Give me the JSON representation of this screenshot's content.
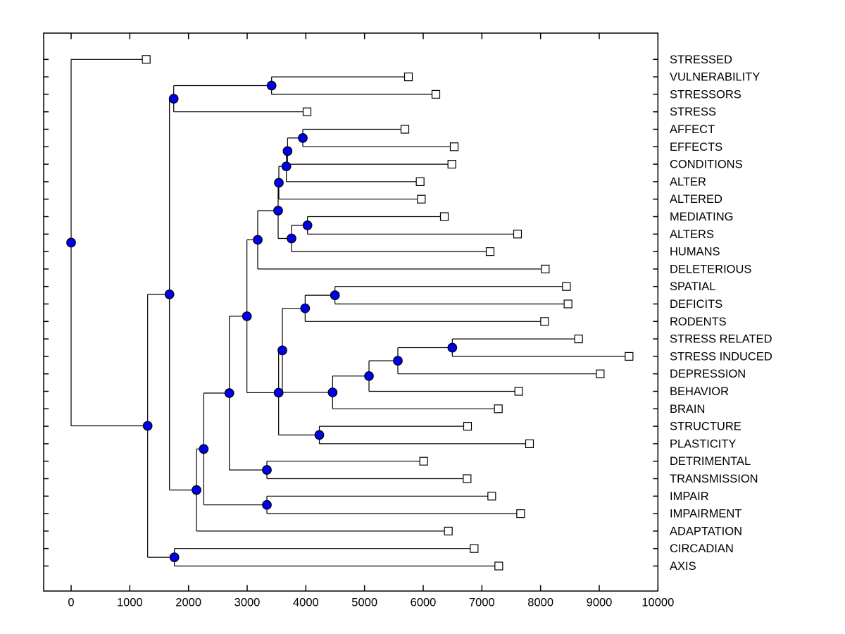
{
  "chart_data": {
    "type": "dendrogram",
    "subtype": "phylogenetic-tree-left-to-right",
    "title": "",
    "xlabel": "",
    "ylabel": "",
    "grid": false,
    "legend": null,
    "xlim": [
      -470,
      10000
    ],
    "x_ticks": [
      0,
      1000,
      2000,
      3000,
      4000,
      5000,
      6000,
      7000,
      8000,
      9000,
      10000
    ],
    "x_tick_labels": [
      "0",
      "1000",
      "2000",
      "3000",
      "4000",
      "5000",
      "6000",
      "7000",
      "8000",
      "9000",
      "10000"
    ],
    "leaf_label_side": "right",
    "markers": {
      "internal_node": "filled-circle",
      "leaf": "open-square"
    },
    "colors": {
      "background": "#ffffff",
      "branch": "#000000",
      "frame": "#000000",
      "node_fill": "#0000f0",
      "node_edge": "#000000",
      "leaf_fill": "#ffffff",
      "leaf_edge": "#000000",
      "text": "#000000"
    },
    "leaves": [
      {
        "row": 1,
        "label": "STRESSED",
        "x": 1280
      },
      {
        "row": 2,
        "label": "VULNERABILITY",
        "x": 5748
      },
      {
        "row": 3,
        "label": "STRESSORS",
        "x": 6216
      },
      {
        "row": 4,
        "label": "STRESS",
        "x": 4020
      },
      {
        "row": 5,
        "label": "AFFECT",
        "x": 5688
      },
      {
        "row": 6,
        "label": "EFFECTS",
        "x": 6528
      },
      {
        "row": 7,
        "label": "CONDITIONS",
        "x": 6488
      },
      {
        "row": 8,
        "label": "ALTER",
        "x": 5948
      },
      {
        "row": 9,
        "label": "ALTERED",
        "x": 5968
      },
      {
        "row": 10,
        "label": "MEDIATING",
        "x": 6360
      },
      {
        "row": 11,
        "label": "ALTERS",
        "x": 7608
      },
      {
        "row": 12,
        "label": "HUMANS",
        "x": 7140
      },
      {
        "row": 13,
        "label": "DELETERIOUS",
        "x": 8080
      },
      {
        "row": 14,
        "label": "SPATIAL",
        "x": 8440
      },
      {
        "row": 15,
        "label": "DEFICITS",
        "x": 8468
      },
      {
        "row": 16,
        "label": "RODENTS",
        "x": 8068
      },
      {
        "row": 17,
        "label": "STRESS RELATED",
        "x": 8648
      },
      {
        "row": 18,
        "label": "STRESS INDUCED",
        "x": 9508
      },
      {
        "row": 19,
        "label": "DEPRESSION",
        "x": 9016
      },
      {
        "row": 20,
        "label": "BEHAVIOR",
        "x": 7628
      },
      {
        "row": 21,
        "label": "BRAIN",
        "x": 7280
      },
      {
        "row": 22,
        "label": "STRUCTURE",
        "x": 6756
      },
      {
        "row": 23,
        "label": "PLASTICITY",
        "x": 7812
      },
      {
        "row": 24,
        "label": "DETRIMENTAL",
        "x": 6008
      },
      {
        "row": 25,
        "label": "TRANSMISSION",
        "x": 6748
      },
      {
        "row": 26,
        "label": "IMPAIR",
        "x": 7168
      },
      {
        "row": 27,
        "label": "IMPAIRMENT",
        "x": 7660
      },
      {
        "row": 28,
        "label": "ADAPTATION",
        "x": 6428
      },
      {
        "row": 29,
        "label": "CIRCADIAN",
        "x": 6868
      },
      {
        "row": 30,
        "label": "AXIS",
        "x": 7288
      }
    ],
    "tree": {
      "x": 0,
      "c": [
        1,
        {
          "x": 1304,
          "c": [
            {
              "x": 1676,
              "c": [
                {
                  "x": 1748,
                  "c": [
                    {
                      "x": 3416,
                      "c": [
                        2,
                        3
                      ]
                    },
                    4
                  ]
                },
                {
                  "x": 2136,
                  "c": [
                    {
                      "x": 2260,
                      "c": [
                        {
                          "x": 2696,
                          "c": [
                            {
                              "x": 2996,
                              "c": [
                                {
                                  "x": 3180,
                                  "c": [
                                    {
                                      "x": 3528,
                                      "c": [
                                        {
                                          "x": 3540,
                                          "c": [
                                            {
                                              "x": 3668,
                                              "c": [
                                                {
                                                  "x": 3688,
                                                  "c": [
                                                    {
                                                      "x": 3948,
                                                      "c": [
                                                        5,
                                                        6
                                                      ]
                                                    },
                                                    7
                                                  ]
                                                },
                                                8
                                              ]
                                            },
                                            9
                                          ]
                                        },
                                        {
                                          "x": 3756,
                                          "c": [
                                            {
                                              "x": 4028,
                                              "c": [
                                                10,
                                                11
                                              ]
                                            },
                                            12
                                          ]
                                        }
                                      ]
                                    },
                                    13
                                  ]
                                },
                                {
                                  "x": 3536,
                                  "c": [
                                    {
                                      "x": 3600,
                                      "c": [
                                        {
                                          "x": 3988,
                                          "c": [
                                            {
                                              "x": 4496,
                                              "c": [
                                                14,
                                                15
                                              ]
                                            },
                                            16
                                          ]
                                        },
                                        {
                                          "x": 4456,
                                          "c": [
                                            {
                                              "x": 5076,
                                              "c": [
                                                {
                                                  "x": 5568,
                                                  "c": [
                                                    {
                                                      "x": 6496,
                                                      "c": [
                                                        17,
                                                        18
                                                      ]
                                                    },
                                                    19
                                                  ]
                                                },
                                                20
                                              ]
                                            },
                                            21
                                          ]
                                        }
                                      ]
                                    },
                                    {
                                      "x": 4230,
                                      "c": [
                                        22,
                                        23
                                      ]
                                    }
                                  ]
                                }
                              ]
                            },
                            {
                              "x": 3336,
                              "c": [
                                24,
                                25
                              ]
                            }
                          ]
                        },
                        {
                          "x": 3336,
                          "c": [
                            26,
                            27
                          ]
                        }
                      ]
                    },
                    28
                  ]
                }
              ]
            },
            {
              "x": 1760,
              "c": [
                29,
                30
              ]
            }
          ]
        }
      ]
    }
  }
}
